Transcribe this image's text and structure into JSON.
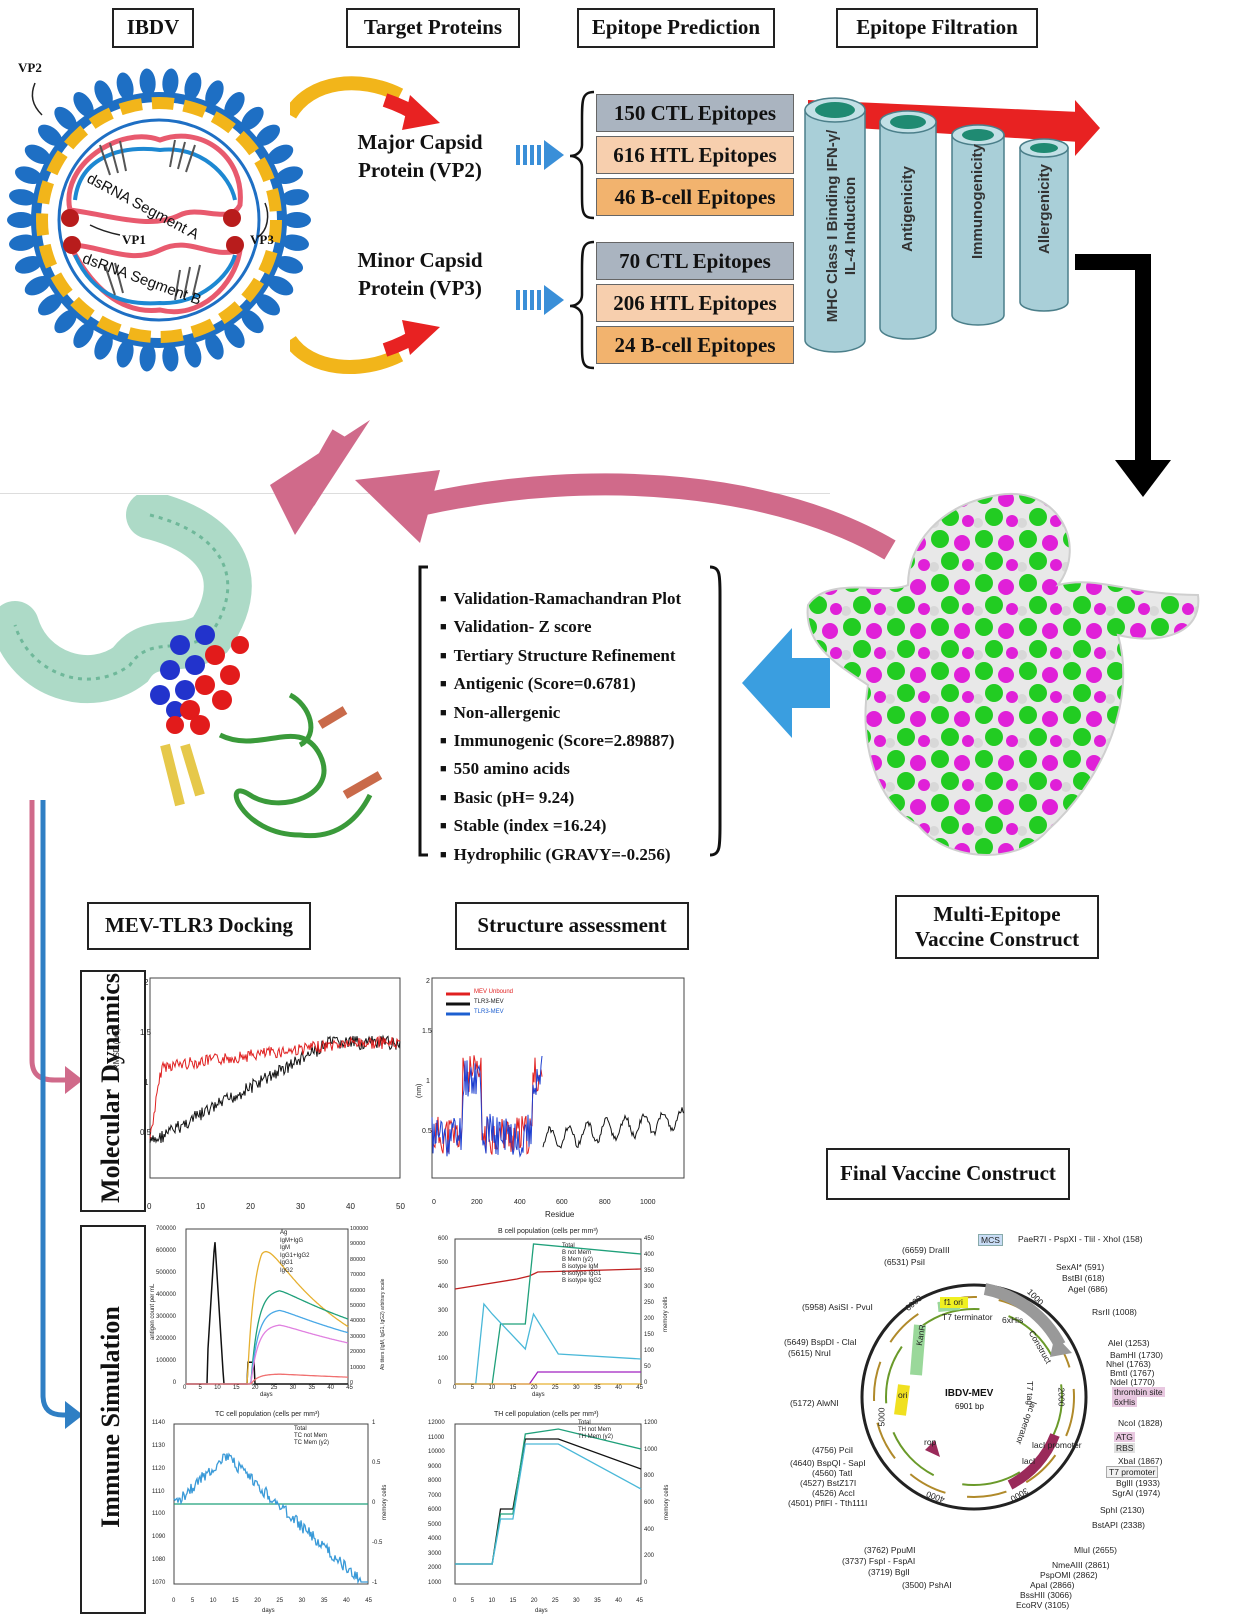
{
  "headers": {
    "ibdv": "IBDV",
    "target": "Target Proteins",
    "prediction": "Epitope Prediction",
    "filtration": "Epitope Filtration"
  },
  "virus": {
    "vp2": "VP2",
    "vp1": "VP1",
    "vp3": "VP3",
    "segment_a": "dsRNA Segment A",
    "segment_b": "dsRNA Segment B"
  },
  "proteins": {
    "major": "Major Capsid Protein (VP2)",
    "minor": "Minor Capsid Protein (VP3)"
  },
  "epitopes": {
    "vp2": [
      "150 CTL Epitopes",
      "616 HTL Epitopes",
      "46 B-cell Epitopes"
    ],
    "vp3": [
      "70 CTL Epitopes",
      "206 HTL Epitopes",
      "24 B-cell Epitopes"
    ]
  },
  "filters": [
    "MHC Class I Binding IFN-γ/ IL-4 Induction",
    "Antigenicity",
    "Immunogenicity",
    "Allergenicity"
  ],
  "properties": [
    "Validation-Ramachandran Plot",
    "Validation- Z score",
    "Tertiary Structure Refinement",
    "Antigenic (Score=0.6781)",
    "Non-allergenic",
    "Immunogenic (Score=2.89887)",
    "550 amino acids",
    "Basic (pH= 9.24)",
    "Stable (index =16.24)",
    "Hydrophilic (GRAVY=-0.256)"
  ],
  "sections": {
    "docking": "MEV-TLR3 Docking",
    "assessment": "Structure assessment",
    "construct": "Multi-Epitope Vaccine Construct",
    "final": "Final Vaccine Construct",
    "md": "Molecular Dynamics",
    "immune": "Immune Simulation"
  },
  "md_rmsd": {
    "ylabel": "RMSD (nm)",
    "xticks": [
      "0",
      "10",
      "20",
      "30",
      "40",
      "50"
    ],
    "yticks": [
      "0.5",
      "1",
      "1.5",
      "2"
    ]
  },
  "md_rmsf": {
    "ylabel": "(nm)",
    "xlabel": "Residue",
    "xticks": [
      "0",
      "200",
      "400",
      "600",
      "800",
      "1000"
    ],
    "yticks": [
      "0.5",
      "1",
      "1.5",
      "2"
    ],
    "legend": [
      "MEV Unbound",
      "TLR3-MEV",
      "TLR3-MEV"
    ]
  },
  "immune_plots": {
    "antigen": {
      "ylabel": "antigen count per mL",
      "y2label": "Ab titers (IgM, IgG1, IgG2) arbitrary scale",
      "xlabel": "days",
      "legend": [
        "Ag",
        "IgM+IgG",
        "IgM",
        "IgG1+IgG2",
        "IgG1",
        "IgG2"
      ],
      "yticks": [
        "700000",
        "600000",
        "500000",
        "400000",
        "300000",
        "200000",
        "100000",
        "0"
      ],
      "y2ticks": [
        "100000",
        "90000",
        "80000",
        "70000",
        "60000",
        "50000",
        "40000",
        "30000",
        "20000",
        "10000",
        "0"
      ],
      "xticks": [
        "0",
        "5",
        "10",
        "15",
        "20",
        "25",
        "30",
        "35",
        "40",
        "45"
      ]
    },
    "bcell": {
      "title": "B cell population (cells per mm³)",
      "y2label": "memory cells",
      "xlabel": "days",
      "legend": [
        "Total",
        "B not Mem",
        "B Mem (y2)",
        "B isotype IgM",
        "B isotype IgG1",
        "B isotype IgG2"
      ],
      "yticks": [
        "600",
        "500",
        "400",
        "300",
        "200",
        "100",
        "0"
      ],
      "y2ticks": [
        "450",
        "400",
        "350",
        "300",
        "250",
        "200",
        "150",
        "100",
        "50",
        "0"
      ],
      "xticks": [
        "0",
        "5",
        "10",
        "15",
        "20",
        "25",
        "30",
        "35",
        "40",
        "45"
      ]
    },
    "tcell": {
      "title": "TC cell population (cells per mm³)",
      "y2label": "memory cells",
      "xlabel": "days",
      "legend": [
        "Total",
        "TC not Mem",
        "TC Mem (y2)"
      ],
      "yticks": [
        "1140",
        "1130",
        "1120",
        "1110",
        "1100",
        "1090",
        "1080",
        "1070"
      ],
      "y2ticks": [
        "1",
        "0.5",
        "0",
        "-0.5",
        "-1"
      ],
      "xticks": [
        "0",
        "5",
        "10",
        "15",
        "20",
        "25",
        "30",
        "35",
        "40",
        "45"
      ]
    },
    "thcell": {
      "title": "TH cell population (cells per mm³)",
      "y2label": "memory cells",
      "xlabel": "days",
      "legend": [
        "Total",
        "TH not Mem",
        "TH Mem (y2)"
      ],
      "yticks": [
        "12000",
        "11000",
        "10000",
        "9000",
        "8000",
        "7000",
        "6000",
        "5000",
        "4000",
        "3000",
        "2000",
        "1000"
      ],
      "y2ticks": [
        "1200",
        "1000",
        "800",
        "600",
        "400",
        "200",
        "0"
      ],
      "xticks": [
        "0",
        "5",
        "10",
        "15",
        "20",
        "25",
        "30",
        "35",
        "40",
        "45"
      ]
    }
  },
  "plasmid": {
    "name": "IBDV-MEV",
    "size": "6901 bp",
    "left_features": [
      "(6659) DraIII",
      "(6531) PsiI",
      "(5958) AsiSI - PvuI",
      "(5649) BspDI - ClaI",
      "(5615) NruI",
      "(5172) AlwNI",
      "(4756) PciI",
      "(4640) BspQI - SapI",
      "(4560) TatI",
      "(4527) BstZ17I",
      "(4526) AccI",
      "(4501) PflFI - Tth111I",
      "(3762) PpuMI",
      "(3737) FspI - FspAI",
      "(3719) BglI",
      "(3500) PshAI"
    ],
    "right_features": [
      "PaeR7I - PspXI - TliI - XhoI (158)",
      "SexAI* (591)",
      "BstBI (618)",
      "AgeI (686)",
      "RsrII (1008)",
      "AleI (1253)",
      "BamHI (1730)",
      "NheI (1763)",
      "BmtI (1767)",
      "NdeI (1770)",
      "NcoI (1828)",
      "XbaI (1867)",
      "BglII (1933)",
      "SgrAI (1974)",
      "SphI (2130)",
      "BstAPI (2338)",
      "MluI (2655)",
      "NmeAIII (2861)",
      "PspOMI (2862)",
      "ApaI (2866)",
      "BssHII (3066)",
      "EcoRV (3105)"
    ],
    "highlights": [
      "MCS",
      "thrombin site",
      "6xHis",
      "ATG",
      "RBS",
      "T7 promoter"
    ],
    "inner": [
      "f1 ori",
      "T7 terminator",
      "6xHis",
      "Construct",
      "T7 tag",
      "lac operator",
      "lacI promoter",
      "lacI",
      "rop",
      "ori",
      "KanR"
    ],
    "ticks": [
      "1000",
      "2000",
      "3000",
      "4000",
      "5000",
      "6000"
    ]
  }
}
